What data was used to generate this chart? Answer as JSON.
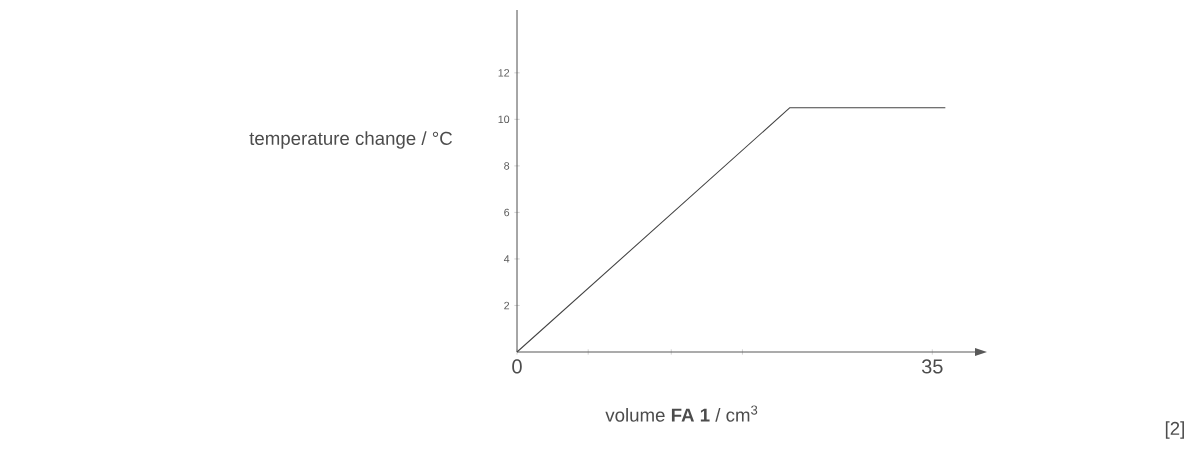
{
  "chart_data": {
    "type": "line",
    "xlabel": "volume **FA 1** / cm$^{3}$",
    "ylabel": "temperature change / °C",
    "x": [
      0,
      23,
      36.1
    ],
    "values": [
      0,
      10.5,
      10.5
    ],
    "color": "#444444",
    "xlim": [
      0,
      38.6
    ],
    "ylim": [
      0,
      14.7
    ],
    "xticks": [
      0,
      {
        "value": 6,
        "label": null
      },
      {
        "value": 13,
        "label": null
      },
      {
        "value": 19,
        "label": null
      },
      35
    ],
    "yticks": [
      2,
      4,
      6,
      8,
      10,
      12
    ],
    "annotations": [
      "[2]"
    ]
  }
}
